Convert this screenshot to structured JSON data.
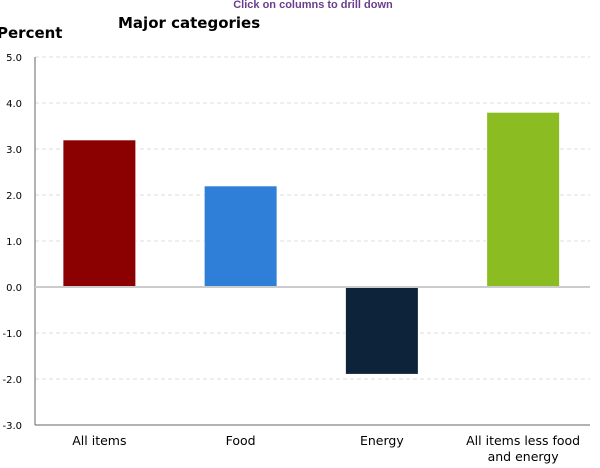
{
  "chart_data": {
    "type": "bar",
    "title": "Major categories",
    "subtitle": "Click on columns to drill down",
    "xlabel": "",
    "ylabel": "Percent",
    "categories": [
      "All items",
      "Food",
      "Energy",
      "All items less food and energy"
    ],
    "values": [
      3.2,
      2.2,
      -1.9,
      3.8
    ],
    "colors": [
      "#8b0000",
      "#2f7ed8",
      "#0d233a",
      "#8bbc21"
    ],
    "ylim": [
      -3.0,
      5.0
    ],
    "yticks": [
      "-3.0",
      "-2.0",
      "-1.0",
      "0.0",
      "1.0",
      "2.0",
      "3.0",
      "4.0",
      "5.0"
    ],
    "grid": true,
    "legend": "none"
  }
}
